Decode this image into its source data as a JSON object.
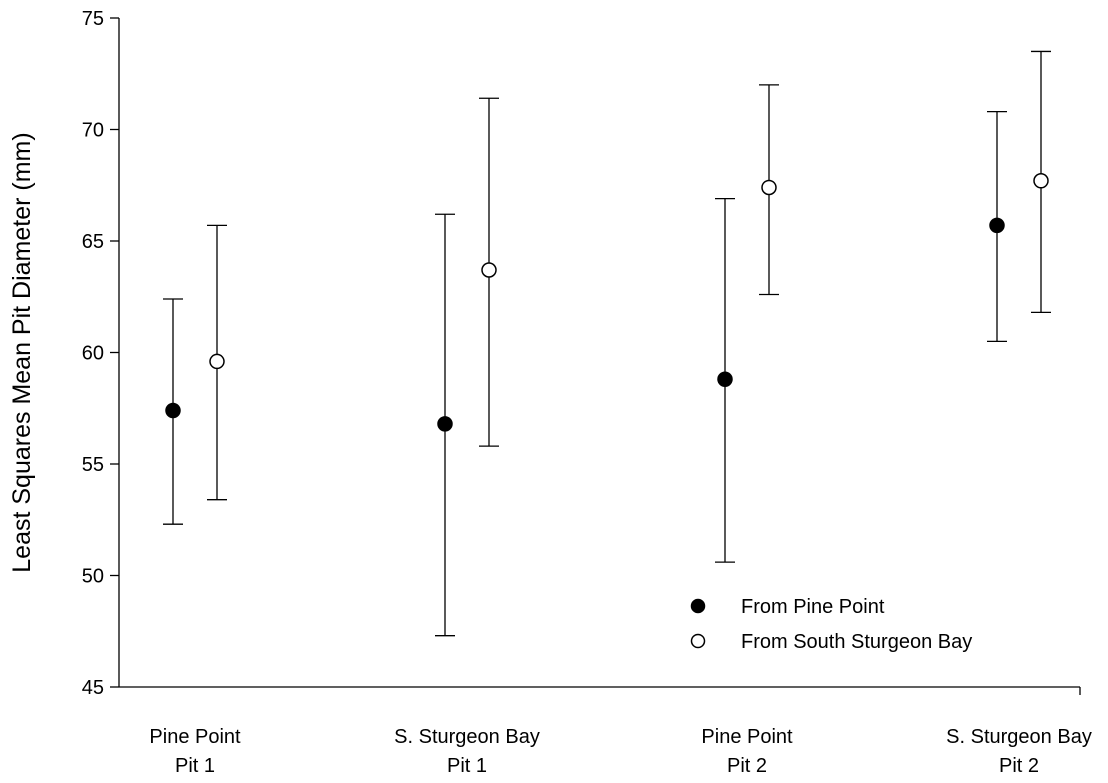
{
  "chart_data": {
    "type": "scatter",
    "title": "",
    "xlabel": "",
    "ylabel": "Least Squares Mean Pit Diameter (mm)",
    "ylim": [
      45,
      75
    ],
    "yticks": [
      45,
      50,
      55,
      60,
      65,
      70,
      75
    ],
    "grid": false,
    "legend_position": "bottom-right",
    "categories": [
      {
        "line1": "Pine Point",
        "line2": "Pit 1"
      },
      {
        "line1": "S. Sturgeon Bay",
        "line2": "Pit 1"
      },
      {
        "line1": "Pine Point",
        "line2": "Pit 2"
      },
      {
        "line1": "S. Sturgeon Bay",
        "line2": "Pit 2"
      }
    ],
    "series": [
      {
        "name": "From Pine Point",
        "marker": "filled-circle",
        "color": "#000000",
        "values": [
          57.4,
          56.8,
          58.8,
          65.7
        ],
        "error_low": [
          52.3,
          47.3,
          50.6,
          60.5
        ],
        "error_high": [
          62.4,
          66.2,
          66.9,
          70.8
        ]
      },
      {
        "name": "From South Sturgeon Bay",
        "marker": "open-circle",
        "color": "#000000",
        "values": [
          59.6,
          63.7,
          67.4,
          67.7
        ],
        "error_low": [
          53.4,
          55.8,
          62.6,
          61.8
        ],
        "error_high": [
          65.7,
          71.4,
          72.0,
          73.5
        ]
      }
    ]
  }
}
